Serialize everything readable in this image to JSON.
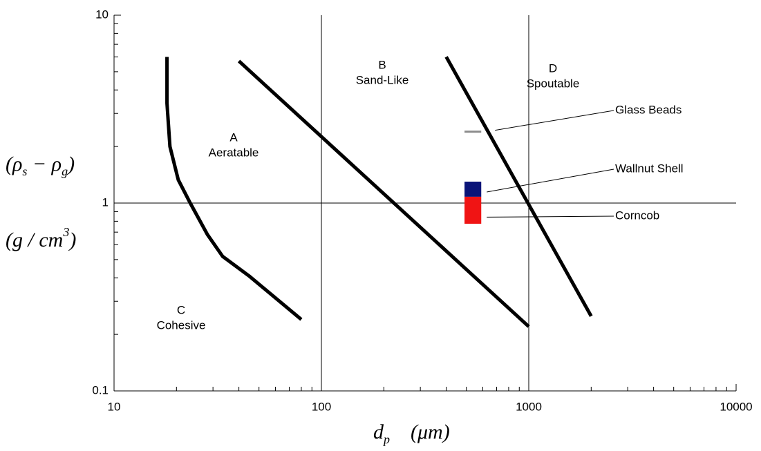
{
  "chart_data": {
    "type": "line",
    "xscale": "log",
    "yscale": "log",
    "xlim": [
      10,
      10000
    ],
    "ylim": [
      0.1,
      10
    ],
    "xticks": [
      10,
      100,
      1000,
      10000
    ],
    "yticks": [
      0.1,
      1,
      10
    ],
    "grid": true,
    "xlabel": {
      "main": "d",
      "sub": "p",
      "unit": "(μm)"
    },
    "ylabel": {
      "line1": [
        "(ρ",
        "s",
        " − ρ",
        "g",
        ")"
      ],
      "line2": [
        "(g / cm",
        "3",
        ")"
      ]
    },
    "series": [
      {
        "color": "#000000",
        "x": [
          18,
          18,
          18.6,
          20.4,
          23.3,
          28.2,
          33.4,
          44.7,
          80
        ],
        "values": [
          6,
          3.4,
          2,
          1.33,
          1,
          0.68,
          0.52,
          0.41,
          0.24
        ]
      },
      {
        "color": "#000000",
        "x": [
          40,
          1000
        ],
        "values": [
          5.7,
          0.22
        ]
      },
      {
        "color": "#000000",
        "x": [
          400,
          2000
        ],
        "values": [
          6,
          0.25
        ]
      }
    ],
    "regions": [
      {
        "letter": "A",
        "name": "Aeratable"
      },
      {
        "letter": "B",
        "name": "Sand-Like"
      },
      {
        "letter": "C",
        "name": "Cohesive"
      },
      {
        "letter": "D",
        "name": "Spoutable"
      }
    ],
    "materials": [
      {
        "name": "Glass Beads",
        "color": "#8c8c8c",
        "x": [
          490,
          590
        ],
        "values": [
          2.4,
          2.4
        ]
      },
      {
        "name": "Wallnut Shell",
        "color": "#0a1478",
        "x": [
          490,
          590
        ],
        "values": [
          1.08,
          1.3
        ]
      },
      {
        "name": "Corncob",
        "color": "#f01414",
        "x": [
          490,
          590
        ],
        "values": [
          0.776,
          1.08
        ]
      }
    ]
  }
}
